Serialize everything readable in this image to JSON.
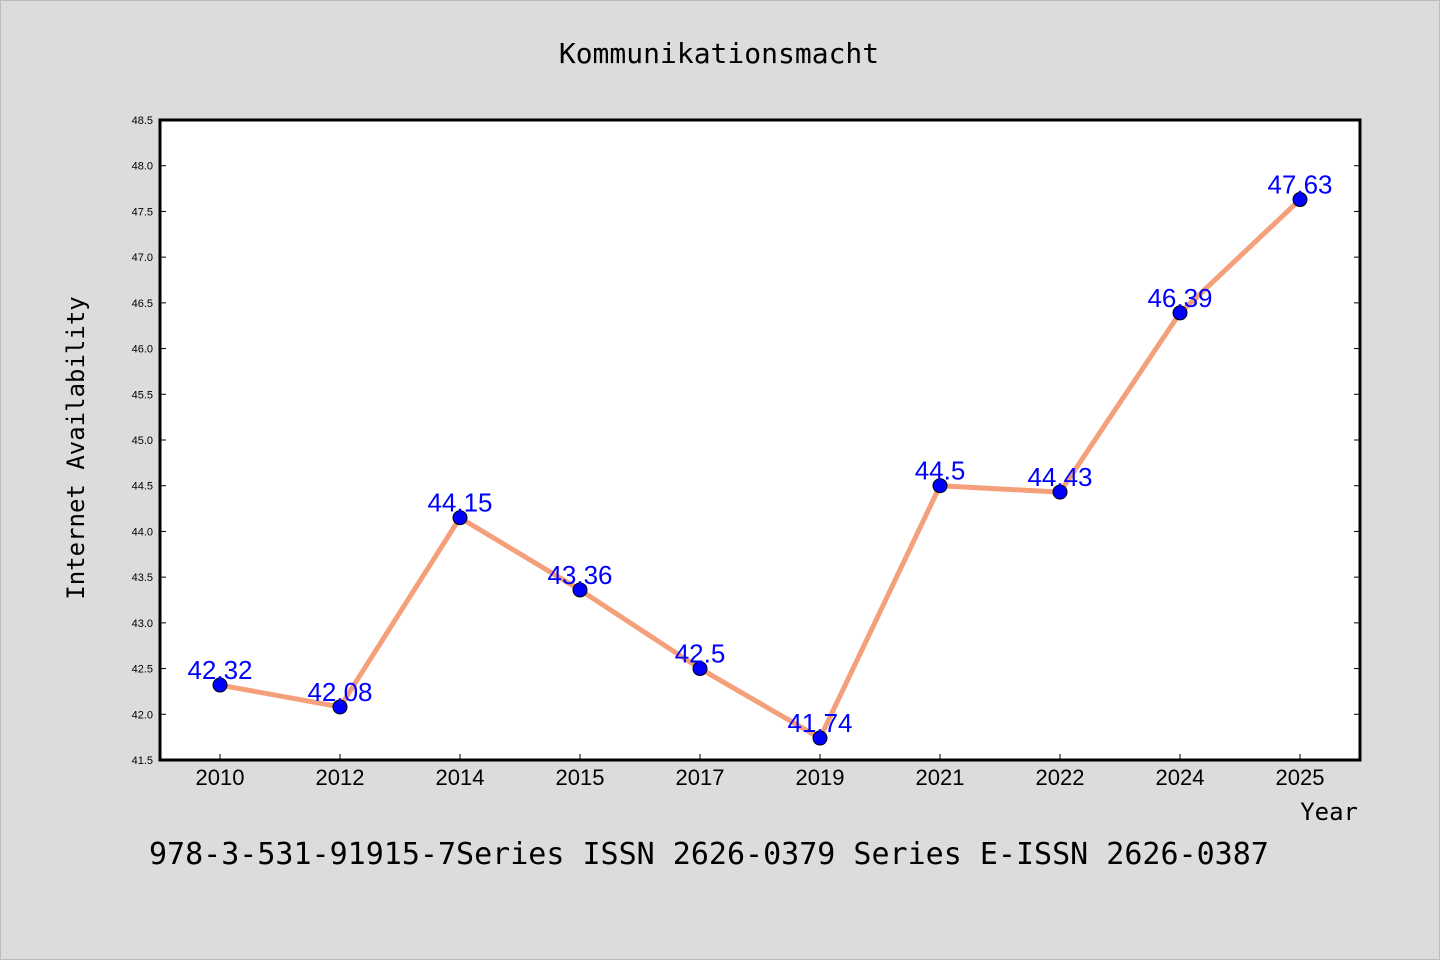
{
  "chart_data": {
    "type": "line",
    "title": "Kommunikationsmacht",
    "xlabel": "Year",
    "ylabel": "Internet Availability",
    "categories": [
      "2010",
      "2012",
      "2014",
      "2015",
      "2017",
      "2019",
      "2021",
      "2022",
      "2024",
      "2025"
    ],
    "values": [
      42.32,
      42.08,
      44.15,
      43.36,
      42.5,
      41.74,
      44.5,
      44.43,
      46.39,
      47.63
    ],
    "data_labels": [
      "42.32",
      "42.08",
      "44.15",
      "43.36",
      "42.5",
      "41.74",
      "44.5",
      "44.43",
      "46.39",
      "47.63"
    ],
    "ylim": [
      41.5,
      48.5
    ],
    "yticks": [
      "41.5",
      "42.0",
      "42.5",
      "43.0",
      "43.5",
      "44.0",
      "44.5",
      "45.0",
      "45.5",
      "46.0",
      "46.5",
      "47.0",
      "47.5",
      "48.0",
      "48.5"
    ],
    "line_color": "#f4a07a",
    "marker_color": "#0000ff",
    "label_color": "#0000ff",
    "background": "#dcdcdc",
    "plot_background": "#ffffff",
    "grid": false,
    "footer": "978-3-531-91915-7Series ISSN 2626-0379 Series E-ISSN 2626-0387"
  }
}
